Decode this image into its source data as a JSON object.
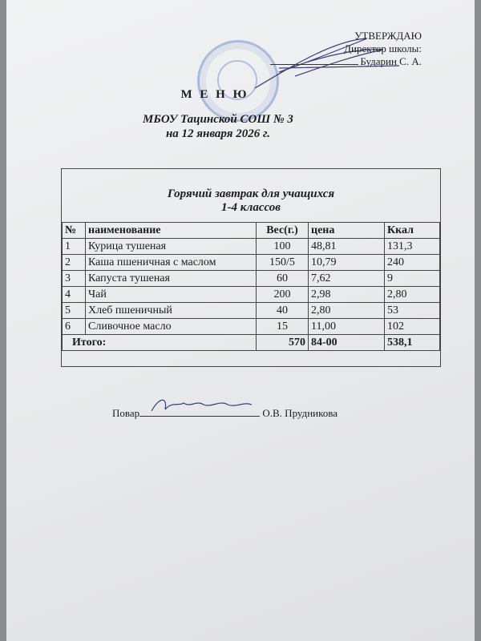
{
  "approval": {
    "line1": "УТВЕРЖДАЮ",
    "line2": "Директор  школы:",
    "line3": "Бударин С. А."
  },
  "header": {
    "title": "М Е Н Ю",
    "school": "МБОУ Тацинской СОШ № 3",
    "date": "на  12 января  2026 г."
  },
  "menu": {
    "caption1": "Горячий завтрак для учащихся",
    "caption2": "1-4 классов",
    "columns": [
      "№",
      "наименование",
      "Вес(г.)",
      "цена",
      "Ккал"
    ],
    "rows": [
      [
        "1",
        "Курица тушеная",
        "100",
        "48,81",
        "131,3"
      ],
      [
        "2",
        "Каша пшеничная с маслом",
        "150/5",
        "10,79",
        "240"
      ],
      [
        "3",
        "Капуста тушеная",
        "60",
        "7,62",
        "9"
      ],
      [
        "4",
        "Чай",
        "200",
        "2,98",
        "2,80"
      ],
      [
        "5",
        "Хлеб пшеничный",
        "40",
        "2,80",
        "53"
      ],
      [
        "6",
        "Сливочное масло",
        "15",
        "11,00",
        "102"
      ]
    ],
    "total": {
      "label": "Итого:",
      "weight": "570",
      "price": "84-00",
      "kcal": "538,1"
    }
  },
  "cook": {
    "label": "Повар",
    "name": "О.В. Прудникова"
  }
}
